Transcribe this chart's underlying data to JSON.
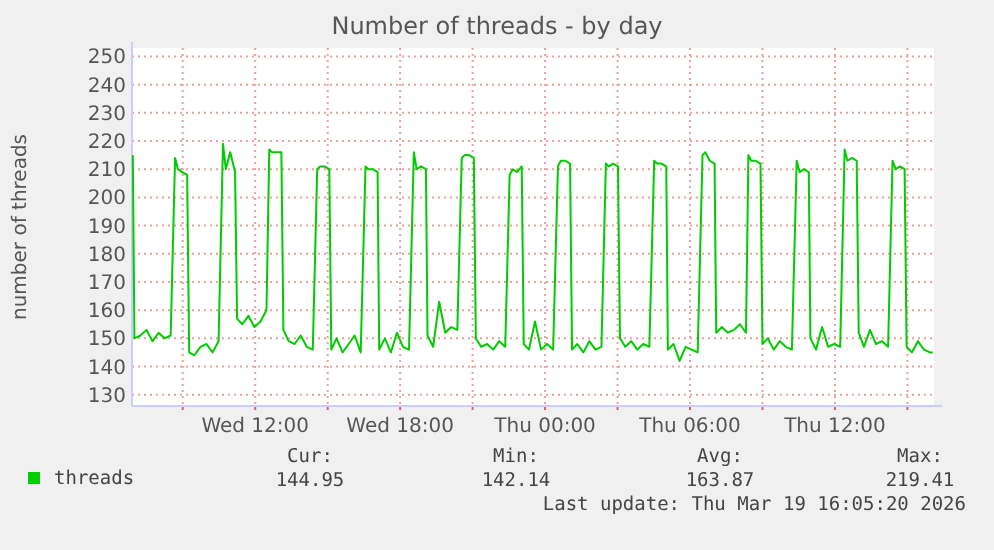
{
  "chart_data": {
    "type": "line",
    "title": "Number of threads - by day",
    "ylabel": "number of threads",
    "x": [
      "2026-03-18T06:56",
      "2026-03-18T07:00",
      "2026-03-18T07:15",
      "2026-03-18T07:30",
      "2026-03-18T07:45",
      "2026-03-18T08:00",
      "2026-03-18T08:15",
      "2026-03-18T08:30",
      "2026-03-18T08:41",
      "2026-03-18T08:48",
      "2026-03-18T08:59",
      "2026-03-18T09:11",
      "2026-03-18T09:16",
      "2026-03-18T09:29",
      "2026-03-18T09:44",
      "2026-03-18T09:59",
      "2026-03-18T10:14",
      "2026-03-18T10:29",
      "2026-03-18T10:40",
      "2026-03-18T10:47",
      "2026-03-18T10:58",
      "2026-03-18T11:10",
      "2026-03-18T11:15",
      "2026-03-18T11:28",
      "2026-03-18T11:43",
      "2026-03-18T11:58",
      "2026-03-18T12:13",
      "2026-03-18T12:28",
      "2026-03-18T12:35",
      "2026-03-18T12:42",
      "2026-03-18T12:53",
      "2026-03-18T13:05",
      "2026-03-18T13:10",
      "2026-03-18T13:23",
      "2026-03-18T13:38",
      "2026-03-18T13:53",
      "2026-03-18T14:08",
      "2026-03-18T14:23",
      "2026-03-18T14:34",
      "2026-03-18T14:41",
      "2026-03-18T14:52",
      "2026-03-18T15:04",
      "2026-03-18T15:09",
      "2026-03-18T15:22",
      "2026-03-18T15:37",
      "2026-03-18T15:52",
      "2026-03-18T16:07",
      "2026-03-18T16:22",
      "2026-03-18T16:34",
      "2026-03-18T16:41",
      "2026-03-18T16:52",
      "2026-03-18T17:04",
      "2026-03-18T17:08",
      "2026-03-18T17:22",
      "2026-03-18T17:37",
      "2026-03-18T17:52",
      "2026-03-18T18:07",
      "2026-03-18T18:22",
      "2026-03-18T18:34",
      "2026-03-18T18:41",
      "2026-03-18T18:52",
      "2026-03-18T19:04",
      "2026-03-18T19:08",
      "2026-03-18T19:22",
      "2026-03-18T19:37",
      "2026-03-18T19:52",
      "2026-03-18T20:07",
      "2026-03-18T20:22",
      "2026-03-18T20:33",
      "2026-03-18T20:40",
      "2026-03-18T20:51",
      "2026-03-18T21:03",
      "2026-03-18T21:08",
      "2026-03-18T21:21",
      "2026-03-18T21:36",
      "2026-03-18T21:51",
      "2026-03-18T22:06",
      "2026-03-18T22:21",
      "2026-03-18T22:32",
      "2026-03-18T22:40",
      "2026-03-18T22:50",
      "2026-03-18T23:02",
      "2026-03-18T23:07",
      "2026-03-18T23:20",
      "2026-03-18T23:35",
      "2026-03-18T23:50",
      "2026-03-19T00:05",
      "2026-03-19T00:20",
      "2026-03-19T00:32",
      "2026-03-19T00:39",
      "2026-03-19T00:50",
      "2026-03-19T01:02",
      "2026-03-19T01:07",
      "2026-03-19T01:20",
      "2026-03-19T01:35",
      "2026-03-19T01:50",
      "2026-03-19T02:05",
      "2026-03-19T02:20",
      "2026-03-19T02:31",
      "2026-03-19T02:38",
      "2026-03-19T02:49",
      "2026-03-19T03:01",
      "2026-03-19T03:06",
      "2026-03-19T03:19",
      "2026-03-19T03:34",
      "2026-03-19T03:49",
      "2026-03-19T04:04",
      "2026-03-19T04:19",
      "2026-03-19T04:31",
      "2026-03-19T04:38",
      "2026-03-19T04:49",
      "2026-03-19T05:01",
      "2026-03-19T05:05",
      "2026-03-19T05:19",
      "2026-03-19T05:34",
      "2026-03-19T05:49",
      "2026-03-19T06:04",
      "2026-03-19T06:19",
      "2026-03-19T06:31",
      "2026-03-19T06:38",
      "2026-03-19T06:49",
      "2026-03-19T07:01",
      "2026-03-19T07:05",
      "2026-03-19T07:19",
      "2026-03-19T07:34",
      "2026-03-19T07:49",
      "2026-03-19T08:04",
      "2026-03-19T08:19",
      "2026-03-19T08:25",
      "2026-03-19T08:32",
      "2026-03-19T08:43",
      "2026-03-19T08:55",
      "2026-03-19T09:00",
      "2026-03-19T09:13",
      "2026-03-19T09:28",
      "2026-03-19T09:43",
      "2026-03-19T09:58",
      "2026-03-19T10:13",
      "2026-03-19T10:25",
      "2026-03-19T10:32",
      "2026-03-19T10:43",
      "2026-03-19T10:55",
      "2026-03-19T10:59",
      "2026-03-19T11:13",
      "2026-03-19T11:28",
      "2026-03-19T11:43",
      "2026-03-19T11:58",
      "2026-03-19T12:13",
      "2026-03-19T12:24",
      "2026-03-19T12:31",
      "2026-03-19T12:42",
      "2026-03-19T12:54",
      "2026-03-19T12:59",
      "2026-03-19T13:12",
      "2026-03-19T13:27",
      "2026-03-19T13:42",
      "2026-03-19T13:57",
      "2026-03-19T14:12",
      "2026-03-19T14:23",
      "2026-03-19T14:31",
      "2026-03-19T14:41",
      "2026-03-19T14:53",
      "2026-03-19T14:58",
      "2026-03-19T15:11",
      "2026-03-19T15:26",
      "2026-03-19T15:41",
      "2026-03-19T15:56",
      "2026-03-19T16:03"
    ],
    "series": [
      {
        "name": "threads",
        "color": "#00cc00",
        "values": [
          215,
          150,
          151,
          153,
          149,
          152,
          150,
          151,
          214,
          210,
          209,
          208,
          145,
          144,
          147,
          148,
          145,
          149,
          219,
          210,
          216,
          209,
          157,
          155,
          158,
          154,
          156,
          160,
          217,
          216,
          216,
          216,
          153,
          149,
          148,
          151,
          147,
          146,
          210,
          211,
          211,
          210,
          146,
          150,
          145,
          148,
          151,
          145,
          211,
          210,
          210,
          209,
          146,
          150,
          145,
          152,
          147,
          146,
          216,
          210,
          211,
          210,
          151,
          147,
          163,
          152,
          154,
          153,
          214,
          215,
          215,
          214,
          150,
          147,
          148,
          146,
          149,
          147,
          208,
          210,
          209,
          211,
          148,
          146,
          156,
          146,
          148,
          146,
          211,
          213,
          213,
          212,
          146,
          148,
          145,
          149,
          146,
          147,
          212,
          211,
          212,
          211,
          150,
          147,
          149,
          146,
          148,
          147,
          213,
          212,
          212,
          211,
          146,
          148,
          142,
          147,
          146,
          145,
          215,
          216,
          213,
          212,
          152,
          154,
          152,
          153,
          155,
          152,
          215,
          213,
          213,
          212,
          148,
          150,
          146,
          149,
          147,
          146,
          213,
          209,
          210,
          209,
          150,
          146,
          154,
          147,
          148,
          147,
          217,
          213,
          214,
          213,
          152,
          147,
          153,
          148,
          149,
          147,
          213,
          210,
          211,
          210,
          147,
          145,
          149,
          146,
          145,
          145
        ]
      }
    ],
    "xlim": [
      "2026-03-18T06:54",
      "2026-03-19T16:06"
    ],
    "xticks": [
      {
        "value": "2026-03-18T09:00",
        "label": null
      },
      {
        "value": "2026-03-18T12:00",
        "label": "Wed 12:00"
      },
      {
        "value": "2026-03-18T15:00",
        "label": null
      },
      {
        "value": "2026-03-18T18:00",
        "label": "Wed 18:00"
      },
      {
        "value": "2026-03-18T21:00",
        "label": null
      },
      {
        "value": "2026-03-19T00:00",
        "label": "Thu 00:00"
      },
      {
        "value": "2026-03-19T03:00",
        "label": null
      },
      {
        "value": "2026-03-19T06:00",
        "label": "Thu 06:00"
      },
      {
        "value": "2026-03-19T09:00",
        "label": null
      },
      {
        "value": "2026-03-19T12:00",
        "label": "Thu 12:00"
      },
      {
        "value": "2026-03-19T15:00",
        "label": null
      }
    ],
    "ylim": [
      126,
      253
    ],
    "yticks": [
      130,
      140,
      150,
      160,
      170,
      180,
      190,
      200,
      210,
      220,
      230,
      240,
      250
    ],
    "grid": true,
    "legend": "bottom left",
    "marker": "none",
    "line_style": "solid",
    "annotations": [
      "Cur:",
      "Min:",
      "Avg:",
      "Max:",
      "144.95",
      "142.14",
      "163.87",
      "219.41",
      "Last update: Thu Mar 19 16:05:20 2026"
    ]
  }
}
